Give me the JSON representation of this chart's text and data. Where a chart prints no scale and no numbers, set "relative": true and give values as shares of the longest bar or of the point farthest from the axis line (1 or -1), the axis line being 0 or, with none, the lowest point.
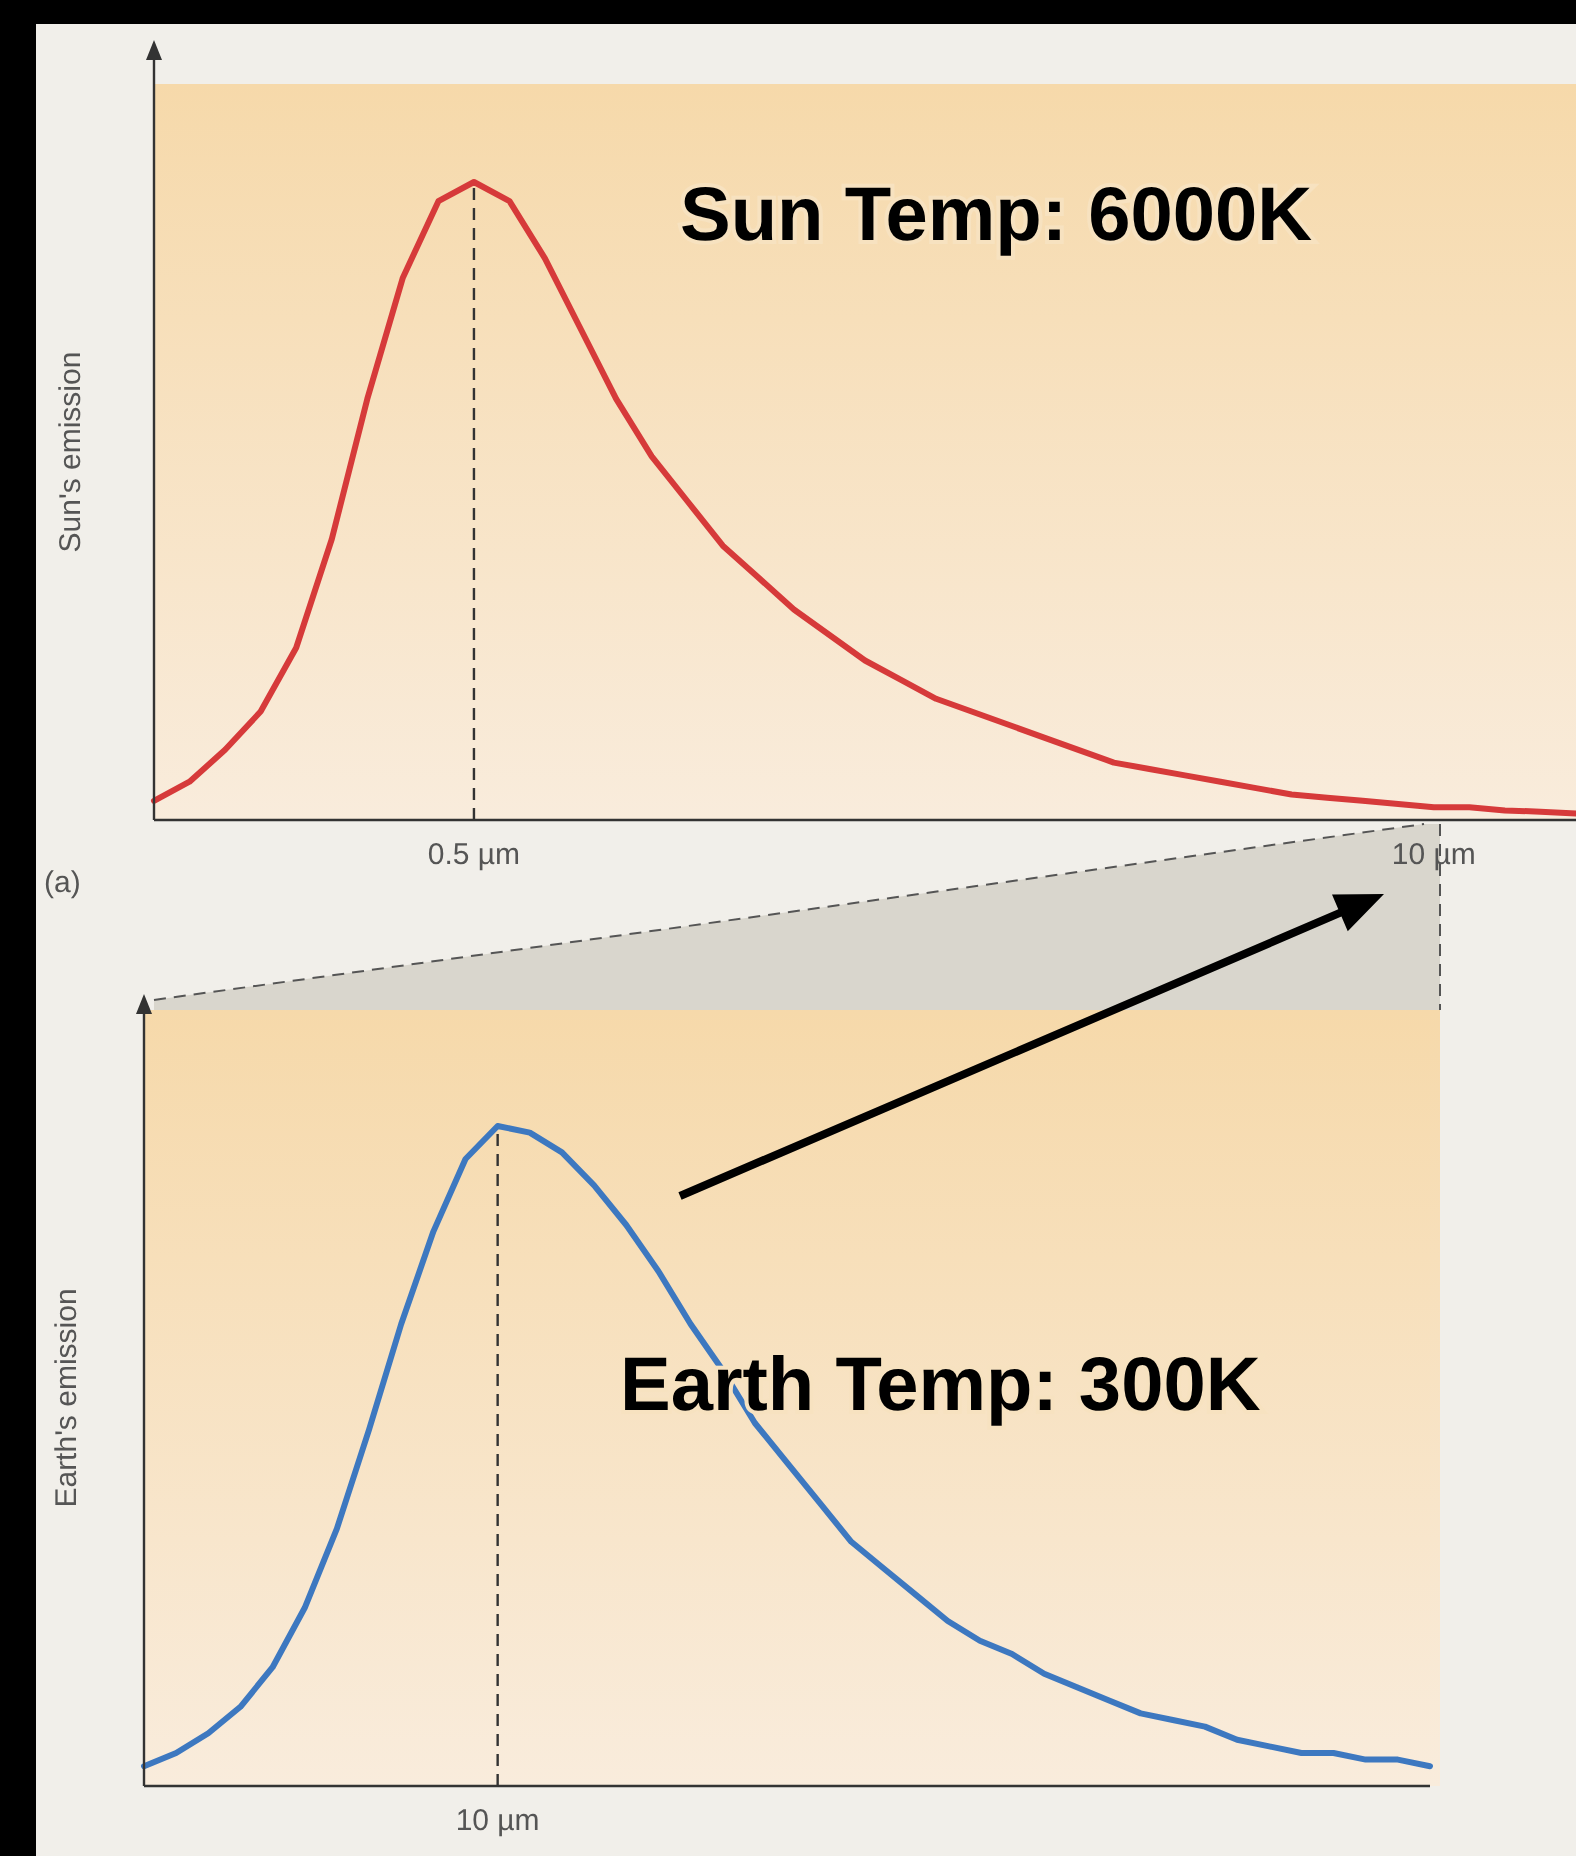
{
  "chart_data": [
    {
      "type": "line",
      "ylabel": "Sun's emission",
      "relative": true,
      "categories": [
        null,
        null,
        null,
        null,
        null,
        null,
        null,
        null,
        null,
        "0.5 µm",
        null,
        null,
        null,
        null,
        null,
        null,
        null,
        null,
        null,
        null,
        null,
        null,
        null,
        null,
        null,
        null,
        null,
        null,
        null,
        null,
        null,
        null,
        null,
        null,
        null,
        null,
        "10 µm",
        null,
        null,
        null,
        null
      ],
      "series": [
        {
          "color": "#d63a3a",
          "values": [
            0.03,
            0.06,
            0.11,
            0.17,
            0.27,
            0.44,
            0.66,
            0.85,
            0.97,
            1.0,
            0.97,
            0.88,
            0.77,
            0.66,
            0.57,
            0.5,
            0.43,
            0.38,
            0.33,
            0.29,
            0.25,
            0.22,
            0.19,
            0.17,
            0.15,
            0.13,
            0.11,
            0.09,
            0.08,
            0.07,
            0.06,
            0.05,
            0.04,
            0.035,
            0.03,
            0.025,
            0.02,
            0.02,
            0.015,
            0.013,
            0.01
          ]
        }
      ],
      "ref_lines": [
        {
          "axis": "x",
          "value": "0.5 µm",
          "line_style": "dashed"
        }
      ],
      "annotations": [
        "Sun Temp: 6000K",
        "(a)"
      ]
    },
    {
      "type": "line",
      "ylabel": "Earth's emission",
      "relative": true,
      "categories": [
        null,
        null,
        null,
        null,
        null,
        null,
        null,
        null,
        null,
        null,
        null,
        null,
        null,
        null,
        null,
        null,
        null,
        null,
        null,
        null,
        null,
        null,
        null,
        null,
        null,
        null,
        null,
        null,
        null,
        null,
        null,
        null,
        null,
        null,
        null,
        null,
        null,
        null,
        null,
        null,
        null
      ],
      "series": [
        {
          "color": "#3d78c0",
          "values": [
            0.03,
            0.05,
            0.08,
            0.12,
            0.18,
            0.27,
            0.39,
            0.54,
            0.7,
            0.84,
            0.95,
            1.0,
            0.99,
            0.96,
            0.91,
            0.85,
            0.78,
            0.7,
            0.63,
            0.55,
            0.49,
            0.43,
            0.37,
            0.33,
            0.29,
            0.25,
            0.22,
            0.2,
            0.17,
            0.15,
            0.13,
            0.11,
            0.1,
            0.09,
            0.07,
            0.06,
            0.05,
            0.05,
            0.04,
            0.04,
            0.03
          ]
        }
      ],
      "annotations": [
        "Earth Temp: 300K",
        "10 µm"
      ]
    }
  ]
}
